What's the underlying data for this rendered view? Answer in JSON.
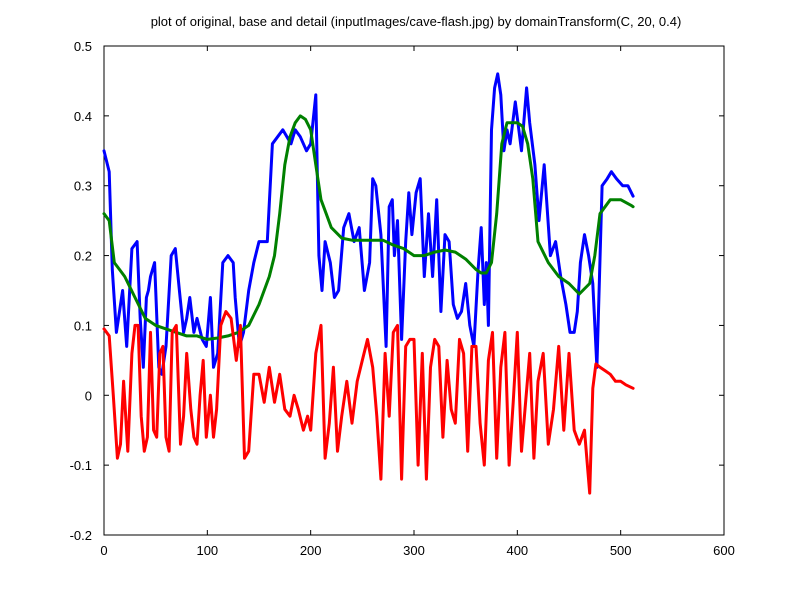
{
  "chart_data": {
    "type": "line",
    "title": "plot of original, base and detail (inputImages/cave-flash.jpg) by domainTransform(C, 20, 0.4)",
    "xlabel": "",
    "ylabel": "",
    "xlim": [
      0,
      600
    ],
    "ylim": [
      -0.2,
      0.5
    ],
    "xticks": [
      "0",
      "100",
      "200",
      "300",
      "400",
      "500",
      "600"
    ],
    "yticks": [
      "-0.2",
      "-0.1",
      "0",
      "0.1",
      "0.2",
      "0.3",
      "0.4",
      "0.5"
    ],
    "grid": false,
    "series": [
      {
        "color": "#0000ff",
        "x": [
          0,
          5,
          8,
          12,
          15,
          18,
          22,
          27,
          32,
          35,
          38,
          41,
          43,
          45,
          49,
          53,
          56,
          58,
          60,
          65,
          69,
          73,
          77,
          80,
          83,
          87,
          90,
          95,
          99,
          103,
          106,
          110,
          115,
          120,
          125,
          127,
          131,
          135,
          140,
          145,
          150,
          158,
          163,
          168,
          173,
          177,
          181,
          185,
          190,
          196,
          200,
          205,
          208,
          211,
          214,
          219,
          223,
          227,
          232,
          237,
          242,
          247,
          252,
          257,
          260,
          263,
          268,
          273,
          276,
          279,
          281,
          284,
          288,
          292,
          295,
          298,
          302,
          306,
          310,
          314,
          318,
          322,
          326,
          330,
          334,
          338,
          342,
          346,
          350,
          354,
          358,
          362,
          365,
          368,
          370,
          372,
          375,
          378,
          381,
          384,
          387,
          390,
          393,
          398,
          404,
          409,
          412,
          417,
          421,
          426,
          432,
          437,
          442,
          447,
          451,
          455,
          458,
          461,
          465,
          469,
          473,
          477,
          482,
          487,
          491,
          496,
          502,
          507,
          512
        ],
        "y": [
          0.35,
          0.32,
          0.18,
          0.09,
          0.12,
          0.15,
          0.07,
          0.21,
          0.22,
          0.11,
          0.04,
          0.14,
          0.15,
          0.17,
          0.19,
          0.04,
          0.03,
          0.05,
          0.07,
          0.2,
          0.21,
          0.15,
          0.09,
          0.11,
          0.14,
          0.09,
          0.11,
          0.08,
          0.07,
          0.14,
          0.04,
          0.06,
          0.19,
          0.2,
          0.19,
          0.14,
          0.07,
          0.09,
          0.15,
          0.19,
          0.22,
          0.22,
          0.36,
          0.37,
          0.38,
          0.37,
          0.36,
          0.38,
          0.37,
          0.35,
          0.36,
          0.43,
          0.2,
          0.15,
          0.22,
          0.19,
          0.14,
          0.15,
          0.24,
          0.26,
          0.22,
          0.24,
          0.15,
          0.19,
          0.31,
          0.3,
          0.23,
          0.07,
          0.27,
          0.28,
          0.2,
          0.25,
          0.08,
          0.22,
          0.29,
          0.23,
          0.29,
          0.31,
          0.17,
          0.26,
          0.17,
          0.28,
          0.12,
          0.23,
          0.22,
          0.13,
          0.11,
          0.12,
          0.16,
          0.1,
          0.07,
          0.18,
          0.24,
          0.13,
          0.19,
          0.1,
          0.38,
          0.44,
          0.46,
          0.43,
          0.35,
          0.38,
          0.36,
          0.42,
          0.35,
          0.44,
          0.39,
          0.33,
          0.25,
          0.33,
          0.2,
          0.22,
          0.17,
          0.13,
          0.09,
          0.09,
          0.12,
          0.19,
          0.23,
          0.2,
          0.16,
          0.04,
          0.3,
          0.31,
          0.32,
          0.31,
          0.3,
          0.3,
          0.285
        ]
      },
      {
        "color": "#008000",
        "x": [
          0,
          5,
          10,
          15,
          20,
          30,
          40,
          50,
          60,
          70,
          80,
          90,
          100,
          110,
          120,
          130,
          140,
          150,
          160,
          165,
          170,
          175,
          180,
          185,
          190,
          195,
          200,
          205,
          210,
          215,
          220,
          230,
          240,
          250,
          260,
          270,
          280,
          290,
          300,
          310,
          320,
          330,
          340,
          350,
          360,
          365,
          370,
          375,
          380,
          385,
          390,
          395,
          400,
          405,
          410,
          415,
          420,
          430,
          440,
          450,
          460,
          470,
          475,
          480,
          490,
          500,
          510,
          512
        ],
        "y": [
          0.26,
          0.25,
          0.19,
          0.18,
          0.17,
          0.14,
          0.11,
          0.1,
          0.095,
          0.09,
          0.085,
          0.085,
          0.08,
          0.082,
          0.085,
          0.09,
          0.1,
          0.13,
          0.17,
          0.2,
          0.26,
          0.33,
          0.37,
          0.39,
          0.4,
          0.395,
          0.38,
          0.33,
          0.28,
          0.26,
          0.24,
          0.225,
          0.222,
          0.222,
          0.222,
          0.222,
          0.215,
          0.21,
          0.2,
          0.2,
          0.205,
          0.208,
          0.205,
          0.195,
          0.18,
          0.175,
          0.175,
          0.19,
          0.26,
          0.36,
          0.39,
          0.39,
          0.39,
          0.385,
          0.36,
          0.31,
          0.22,
          0.19,
          0.17,
          0.16,
          0.145,
          0.16,
          0.2,
          0.26,
          0.28,
          0.28,
          0.272,
          0.27
        ]
      },
      {
        "color": "#ff0000",
        "x": [
          0,
          5,
          9,
          13,
          16,
          19,
          23,
          27,
          30,
          33,
          36,
          39,
          42,
          45,
          48,
          51,
          54,
          57,
          60,
          63,
          66,
          70,
          74,
          77,
          80,
          84,
          87,
          90,
          93,
          96,
          99,
          103,
          106,
          109,
          113,
          118,
          123,
          128,
          132,
          136,
          140,
          145,
          150,
          155,
          160,
          165,
          170,
          175,
          180,
          184,
          188,
          193,
          197,
          200,
          205,
          210,
          214,
          218,
          222,
          226,
          230,
          235,
          240,
          245,
          250,
          255,
          260,
          264,
          268,
          272,
          276,
          280,
          284,
          288,
          292,
          296,
          300,
          304,
          308,
          312,
          316,
          320,
          324,
          328,
          332,
          336,
          340,
          344,
          348,
          352,
          356,
          360,
          364,
          368,
          372,
          376,
          380,
          384,
          388,
          392,
          396,
          400,
          404,
          408,
          412,
          416,
          420,
          425,
          430,
          435,
          440,
          445,
          450,
          455,
          460,
          465,
          470,
          473,
          476,
          480,
          485,
          490,
          495,
          500,
          505,
          512
        ],
        "y": [
          0.095,
          0.085,
          0.0,
          -0.09,
          -0.07,
          0.02,
          -0.08,
          0.06,
          0.1,
          0.1,
          -0.03,
          -0.08,
          -0.06,
          0.09,
          -0.05,
          -0.06,
          0.06,
          0.07,
          -0.06,
          -0.08,
          0.09,
          0.1,
          -0.07,
          -0.03,
          0.06,
          -0.02,
          -0.06,
          -0.07,
          0.0,
          0.05,
          -0.06,
          0.0,
          -0.06,
          -0.02,
          0.1,
          0.12,
          0.11,
          0.05,
          0.1,
          -0.09,
          -0.08,
          0.03,
          0.03,
          -0.01,
          0.04,
          -0.01,
          0.03,
          -0.02,
          -0.03,
          0.0,
          -0.02,
          -0.05,
          -0.03,
          -0.05,
          0.06,
          0.1,
          -0.09,
          -0.04,
          0.04,
          -0.08,
          -0.03,
          0.02,
          -0.04,
          0.02,
          0.05,
          0.08,
          0.04,
          -0.03,
          -0.12,
          0.06,
          -0.03,
          0.09,
          0.1,
          -0.12,
          0.07,
          0.08,
          0.08,
          -0.1,
          0.06,
          -0.12,
          0.04,
          0.08,
          0.07,
          -0.06,
          0.05,
          -0.02,
          -0.04,
          0.08,
          0.06,
          -0.08,
          0.07,
          0.07,
          -0.04,
          -0.1,
          0.05,
          0.09,
          -0.09,
          0.04,
          0.09,
          -0.1,
          -0.01,
          0.09,
          -0.08,
          -0.01,
          0.06,
          -0.09,
          0.02,
          0.06,
          -0.07,
          -0.02,
          0.07,
          -0.05,
          0.06,
          -0.05,
          -0.07,
          -0.05,
          -0.14,
          0.01,
          0.045,
          0.04,
          0.035,
          0.03,
          0.02,
          0.02,
          0.015,
          0.01
        ]
      }
    ]
  }
}
